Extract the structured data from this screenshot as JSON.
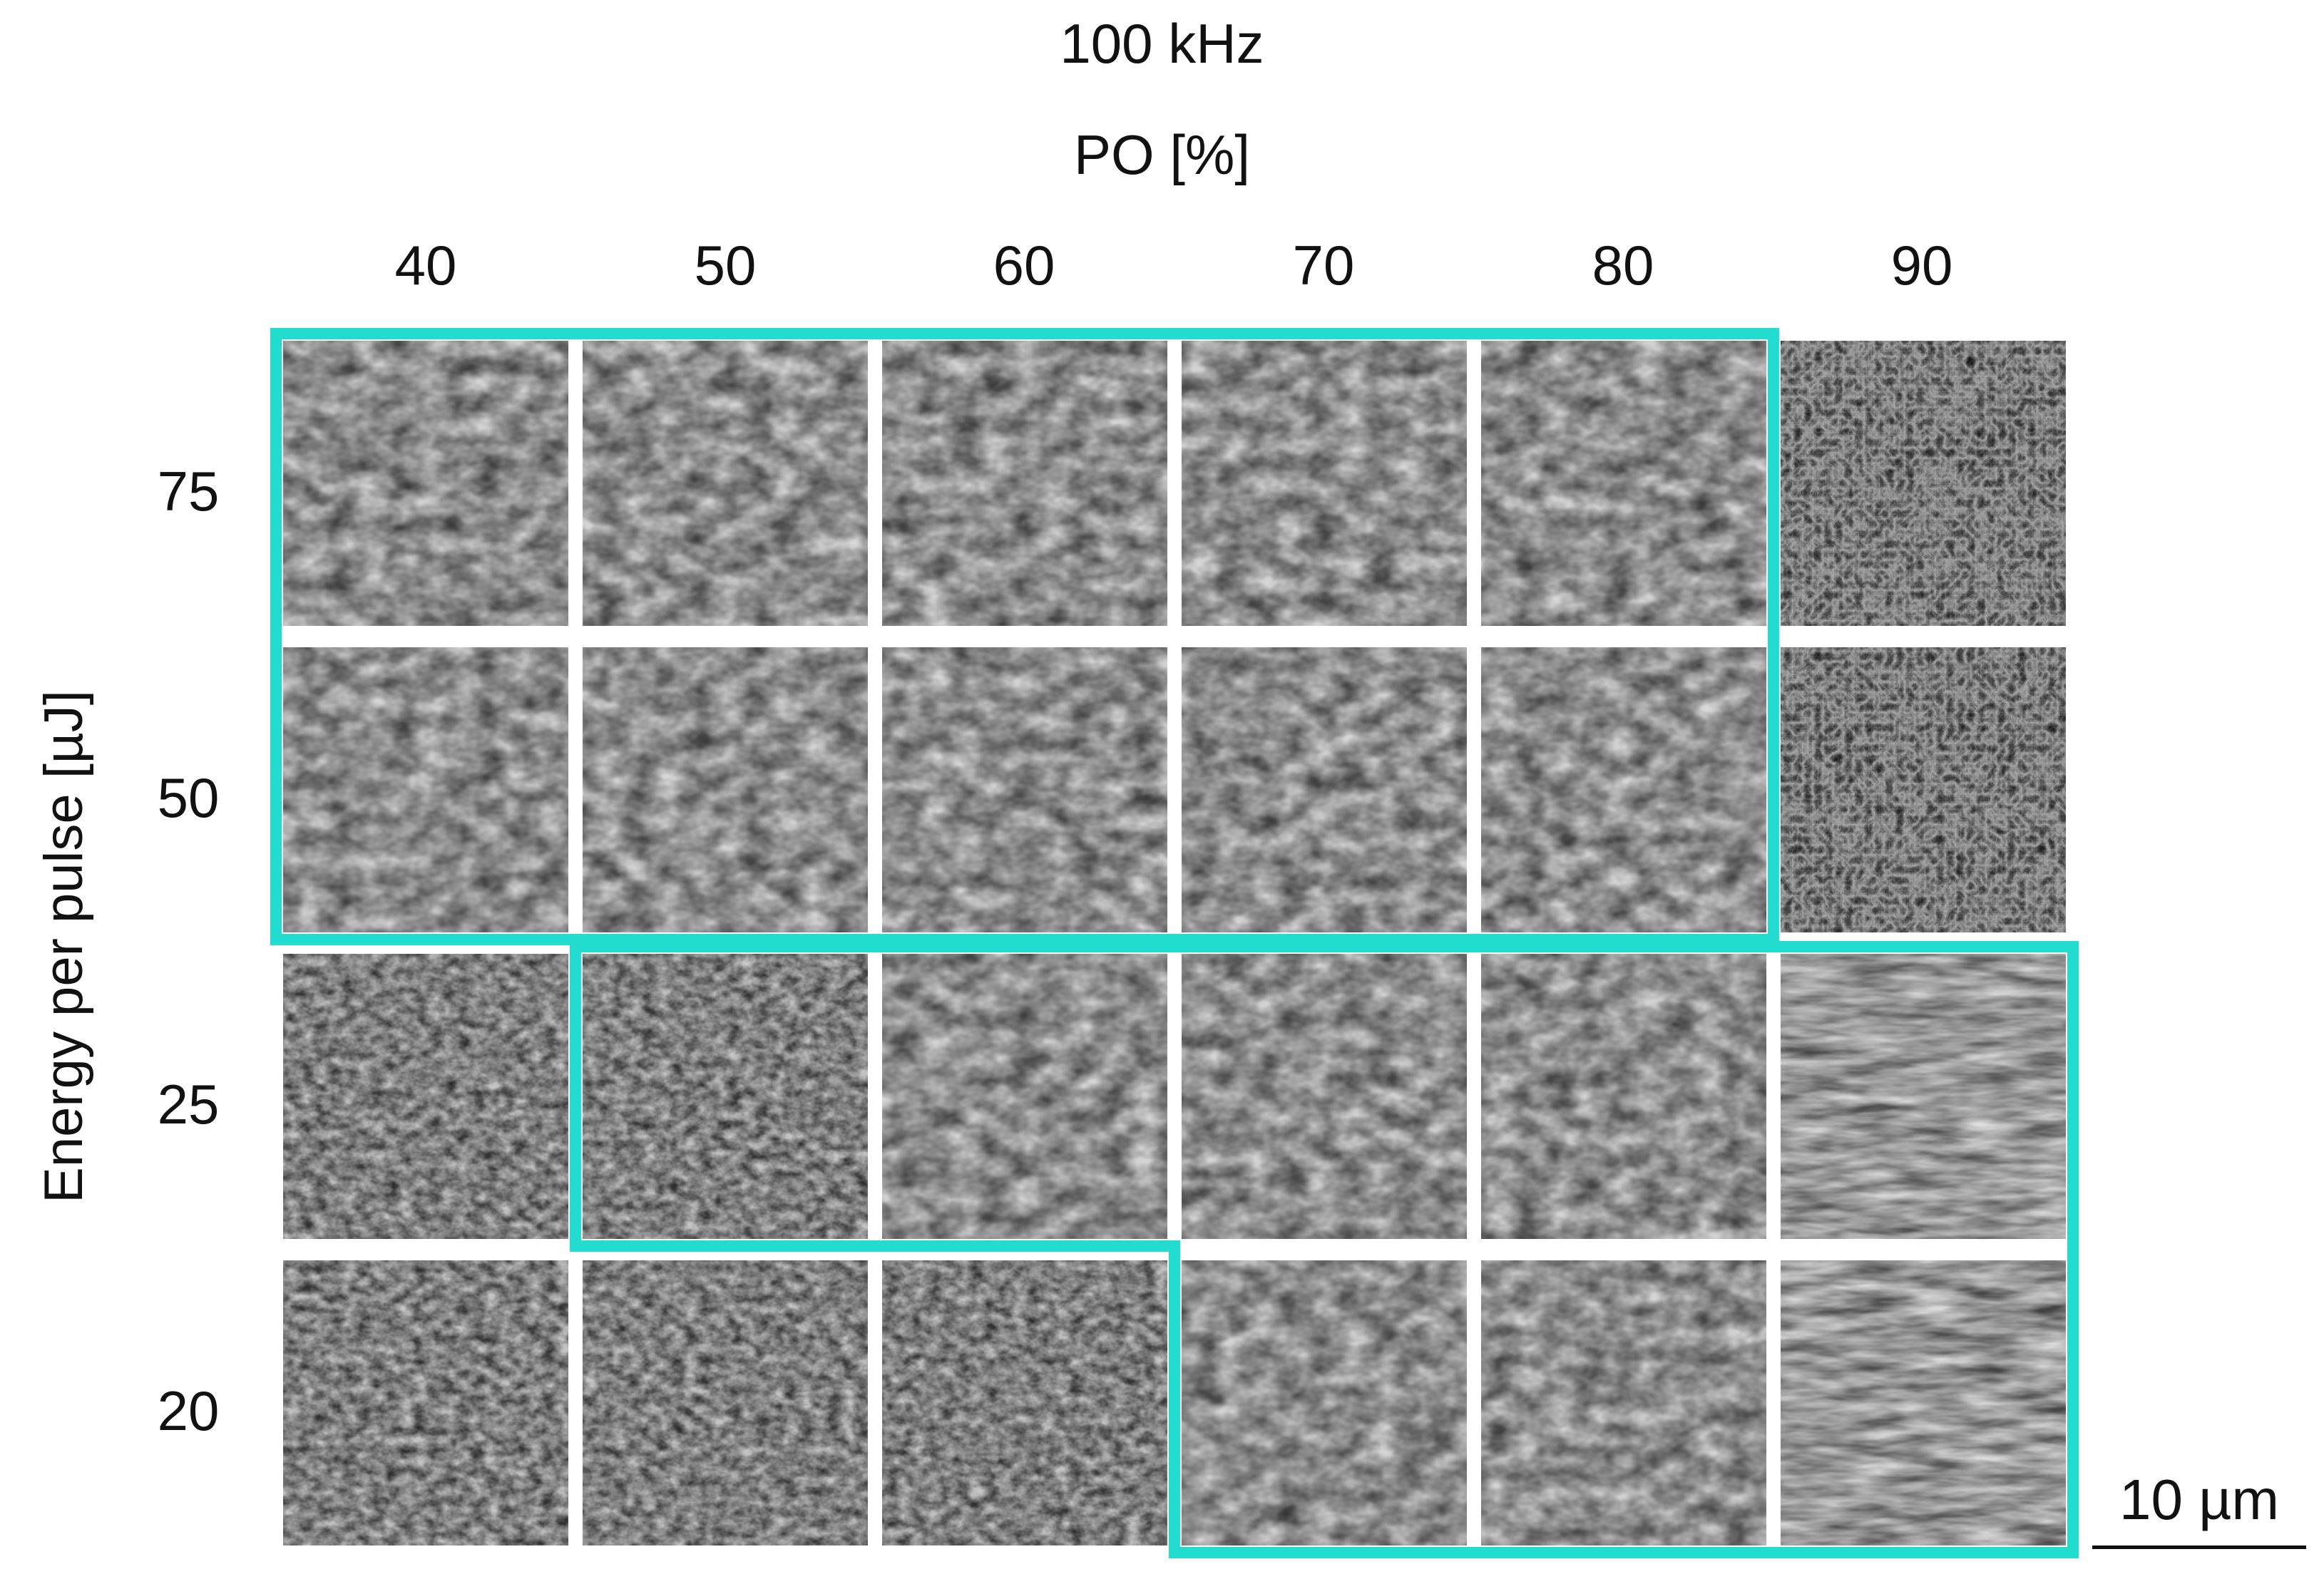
{
  "title_frequency": "100 kHz",
  "column_axis_title": "PO [%]",
  "column_labels": [
    "40",
    "50",
    "60",
    "70",
    "80",
    "90"
  ],
  "row_axis_title": "Energy per pulse [µJ]",
  "row_labels": [
    "75",
    "50",
    "25",
    "20"
  ],
  "scale_bar_label": "10 µm",
  "highlight_color": "#22dcd0",
  "panel_grid": {
    "rows": 4,
    "columns": 6,
    "panels": [
      [
        "ripple",
        "ripple",
        "ripple",
        "ripple",
        "ripple",
        "clustered"
      ],
      [
        "ripple",
        "ripple",
        "ripple",
        "ripple",
        "ripple",
        "clustered"
      ],
      [
        "dense",
        "dense",
        "ripple",
        "ripple",
        "ripple",
        "stringy"
      ],
      [
        "dense",
        "dense",
        "dense",
        "ripple",
        "ripple",
        "stringy"
      ]
    ],
    "highlighted_regions": [
      {
        "cells": [
          [
            0,
            0
          ],
          [
            0,
            1
          ],
          [
            0,
            2
          ],
          [
            0,
            3
          ],
          [
            0,
            4
          ],
          [
            1,
            0
          ],
          [
            1,
            1
          ],
          [
            1,
            2
          ],
          [
            1,
            3
          ],
          [
            1,
            4
          ]
        ]
      },
      {
        "cells": [
          [
            2,
            1
          ],
          [
            2,
            2
          ],
          [
            2,
            3
          ],
          [
            2,
            4
          ],
          [
            2,
            5
          ],
          [
            3,
            3
          ],
          [
            3,
            4
          ],
          [
            3,
            5
          ]
        ]
      }
    ]
  }
}
